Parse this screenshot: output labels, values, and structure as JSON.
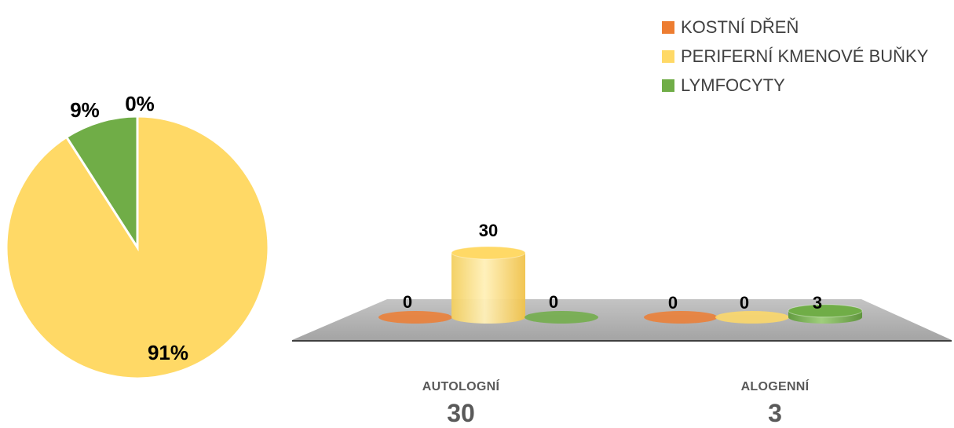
{
  "chart_data": [
    {
      "type": "pie",
      "slices": [
        {
          "label": "KOSTNÍ DŘEŇ",
          "value": 0,
          "percent_label": "0%",
          "color": "#ED7D31"
        },
        {
          "label": "PERIFERNÍ KMENOVÉ BUŇKY",
          "value": 30,
          "percent_label": "91%",
          "color": "#FFD966"
        },
        {
          "label": "LYMFOCYTY",
          "value": 3,
          "percent_label": "9%",
          "color": "#70AD47"
        }
      ]
    },
    {
      "type": "bar",
      "style": "3d-cylinder",
      "categories": [
        {
          "label": "AUTOLOGNÍ",
          "total": "30"
        },
        {
          "label": "ALOGENNÍ",
          "total": "3"
        }
      ],
      "series": [
        {
          "name": "KOSTNÍ DŘEŇ",
          "color": "#ED7D31",
          "values": [
            0,
            0
          ]
        },
        {
          "name": "PERIFERNÍ KMENOVÉ BUŇKY",
          "color": "#FFD966",
          "values": [
            30,
            0
          ]
        },
        {
          "name": "LYMFOCYTY",
          "color": "#70AD47",
          "values": [
            0,
            3
          ]
        }
      ],
      "ylim": [
        0,
        30
      ],
      "legend_position": "top-right",
      "grid": false
    }
  ]
}
